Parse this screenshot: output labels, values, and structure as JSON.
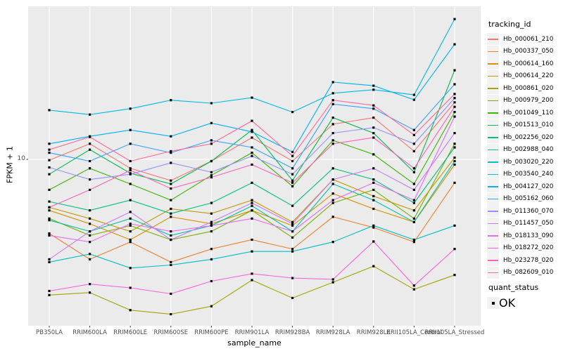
{
  "figure": {
    "y_axis": {
      "title": "FPKM + 1",
      "tick_label": "10"
    },
    "x_axis": {
      "title": "sample_name"
    },
    "legend": {
      "tracking_title": "tracking_id",
      "quant_title": "quant_status",
      "quant_ok_label": "OK"
    },
    "colors": {
      "panel_bg": "#EBEBEB",
      "grid": "#FFFFFF",
      "axis_text": "#4D4D4D",
      "title_text": "#000000",
      "legend_key_bg": "#F2F2F2",
      "marker": "#000000"
    }
  },
  "chart_data": {
    "type": "line",
    "title": "",
    "xlabel": "sample_name",
    "ylabel": "FPKM + 1",
    "y_scale": "log10",
    "y_ticks": [
      10
    ],
    "ylim": [
      1.4,
      60
    ],
    "grid": "white vertical major gridlines per category + horizontal line at 10",
    "legend_position": "right",
    "marker": "small black square on every point",
    "categories": [
      "PB350LA",
      "RRIM600LA",
      "RRIM600LE",
      "RRIM600SE",
      "RRIM600PE",
      "RRIM901LA",
      "RRIM928BA",
      "RRIM928LA",
      "RRIM928LE",
      "RRII105LA_Control",
      "RRII105LA_Stressed"
    ],
    "series": [
      {
        "name": "Hb_000061_210",
        "color": "#F8766D",
        "values": [
          9.9,
          12.0,
          9.0,
          7.8,
          9.8,
          12.9,
          9.8,
          15.1,
          16.3,
          11.0,
          19.5
        ]
      },
      {
        "name": "Hb_000337_050",
        "color": "#EA8331",
        "values": [
          4.2,
          3.1,
          3.8,
          3.0,
          3.5,
          3.9,
          3.5,
          5.1,
          4.5,
          3.8,
          7.6
        ]
      },
      {
        "name": "Hb_000614_160",
        "color": "#D89000",
        "values": [
          5.5,
          4.7,
          3.9,
          5.1,
          4.7,
          5.5,
          4.6,
          6.7,
          5.6,
          4.8,
          9.4
        ]
      },
      {
        "name": "Hb_000614_220",
        "color": "#C09B00",
        "values": [
          5.7,
          5.0,
          4.3,
          5.6,
          5.3,
          6.2,
          4.8,
          7.9,
          6.5,
          5.5,
          10.2
        ]
      },
      {
        "name": "Hb_000861_020",
        "color": "#A3A500",
        "values": [
          2.04,
          2.1,
          1.71,
          1.63,
          1.79,
          2.43,
          1.97,
          2.37,
          2.86,
          2.18,
          2.58
        ]
      },
      {
        "name": "Hb_000979_200",
        "color": "#7CAE00",
        "values": [
          5.0,
          4.1,
          4.6,
          3.9,
          4.3,
          5.5,
          4.0,
          6.0,
          7.0,
          5.0,
          12.0
        ]
      },
      {
        "name": "Hb_001049_110",
        "color": "#39B600",
        "values": [
          7.0,
          9.0,
          7.5,
          6.2,
          8.3,
          10.8,
          7.3,
          12.5,
          10.6,
          7.5,
          17.4
        ]
      },
      {
        "name": "Hb_001513_010",
        "color": "#00BB4E",
        "values": [
          8.4,
          11.2,
          8.5,
          7.5,
          9.8,
          14.1,
          7.8,
          16.3,
          13.6,
          8.6,
          28.4
        ]
      },
      {
        "name": "Hb_002256_020",
        "color": "#00BF7D",
        "values": [
          6.1,
          5.5,
          6.2,
          5.3,
          6.0,
          7.6,
          5.8,
          9.0,
          7.9,
          6.0,
          11.5
        ]
      },
      {
        "name": "Hb_002988_040",
        "color": "#00C1A3",
        "values": [
          4.9,
          4.3,
          5.0,
          4.1,
          4.6,
          5.8,
          4.3,
          7.5,
          6.2,
          4.8,
          9.8
        ]
      },
      {
        "name": "Hb_003020_220",
        "color": "#00BFC4",
        "values": [
          3.0,
          3.3,
          2.8,
          2.9,
          3.1,
          3.4,
          3.4,
          3.8,
          4.6,
          3.9,
          4.6
        ]
      },
      {
        "name": "Hb_003540_240",
        "color": "#00BAE0",
        "values": [
          17.8,
          16.9,
          18.1,
          20.0,
          19.3,
          20.6,
          17.4,
          21.7,
          22.6,
          21.3,
          51.7
        ]
      },
      {
        "name": "Hb_004127_020",
        "color": "#00B0F6",
        "values": [
          12.0,
          13.1,
          14.1,
          13.1,
          15.3,
          13.8,
          10.9,
          24.7,
          23.7,
          20.1,
          38.5
        ]
      },
      {
        "name": "Hb_005162_060",
        "color": "#35A2FF",
        "values": [
          10.8,
          9.8,
          12.0,
          10.8,
          12.5,
          11.5,
          9.0,
          19.1,
          18.1,
          14.1,
          24.1
        ]
      },
      {
        "name": "Hb_011360_070",
        "color": "#9590FF",
        "values": [
          9.1,
          7.9,
          8.4,
          9.6,
          8.6,
          10.4,
          8.4,
          13.6,
          14.5,
          12.0,
          20.5
        ]
      },
      {
        "name": "Hb_011457_050",
        "color": "#C77CFF",
        "values": [
          3.1,
          4.3,
          5.4,
          3.9,
          4.8,
          6.0,
          4.7,
          7.9,
          9.0,
          7.0,
          13.6
        ]
      },
      {
        "name": "Hb_018133_090",
        "color": "#E76BF3",
        "values": [
          4.1,
          3.8,
          4.7,
          4.3,
          4.6,
          5.0,
          4.3,
          6.2,
          7.6,
          6.2,
          16.5
        ]
      },
      {
        "name": "Hb_018272_020",
        "color": "#FA62DB",
        "values": [
          2.14,
          2.32,
          2.22,
          2.07,
          2.4,
          2.62,
          2.49,
          2.45,
          3.82,
          2.28,
          3.5
        ]
      },
      {
        "name": "Hb_023278_020",
        "color": "#FF62BC",
        "values": [
          5.7,
          7.0,
          8.8,
          7.1,
          8.1,
          9.4,
          7.6,
          12.0,
          12.9,
          9.0,
          18.5
        ]
      },
      {
        "name": "Hb_082609_010",
        "color": "#FF6A98",
        "values": [
          11.2,
          13.0,
          9.8,
          11.0,
          12.0,
          15.7,
          10.4,
          20.0,
          18.8,
          13.3,
          21.5
        ]
      }
    ],
    "quant_status": {
      "title": "quant_status",
      "levels": [
        "OK"
      ],
      "all_points": "OK"
    }
  }
}
